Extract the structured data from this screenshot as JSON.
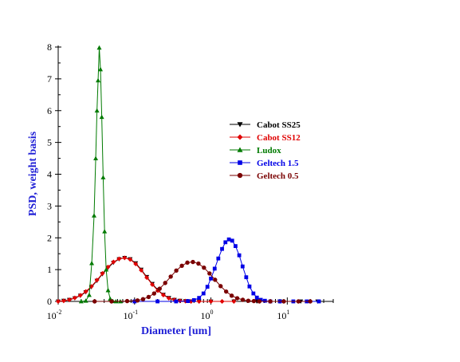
{
  "chart_data": {
    "type": "line",
    "xlabel": "Diameter [um]",
    "ylabel": "PSD, weight basis",
    "x_scale": "log",
    "xlim": [
      0.01,
      40
    ],
    "ylim": [
      0,
      8
    ],
    "y_ticks": [
      0,
      1,
      2,
      3,
      4,
      5,
      6,
      7,
      8
    ],
    "x_ticks": [
      {
        "value": 0.01,
        "base": "10",
        "exp": "-2"
      },
      {
        "value": 0.1,
        "base": "10",
        "exp": "-1"
      },
      {
        "value": 1,
        "base": "10",
        "exp": "0"
      },
      {
        "value": 10,
        "base": "10",
        "exp": "1"
      }
    ],
    "legend_position": "right-center",
    "grid": false,
    "series": [
      {
        "name": "Cabot SS25",
        "color": "#000000",
        "marker": "triangle-down",
        "points": [
          [
            0.01,
            0.0
          ],
          [
            0.0118,
            0.02
          ],
          [
            0.014,
            0.05
          ],
          [
            0.0165,
            0.1
          ],
          [
            0.0195,
            0.18
          ],
          [
            0.023,
            0.29
          ],
          [
            0.0272,
            0.45
          ],
          [
            0.0322,
            0.65
          ],
          [
            0.038,
            0.86
          ],
          [
            0.0449,
            1.06
          ],
          [
            0.053,
            1.22
          ],
          [
            0.0627,
            1.33
          ],
          [
            0.0741,
            1.37
          ],
          [
            0.0876,
            1.33
          ],
          [
            0.1035,
            1.2
          ],
          [
            0.1222,
            1.0
          ],
          [
            0.1445,
            0.77
          ],
          [
            0.1707,
            0.55
          ],
          [
            0.2017,
            0.36
          ],
          [
            0.2383,
            0.21
          ],
          [
            0.2817,
            0.11
          ],
          [
            0.3328,
            0.05
          ],
          [
            0.3933,
            0.02
          ],
          [
            0.4647,
            0.01
          ],
          [
            0.5492,
            0.0
          ],
          [
            0.7,
            0.0
          ],
          [
            1.0,
            0.0
          ],
          [
            2.0,
            0.0
          ],
          [
            4.0,
            0.0
          ],
          [
            8.0,
            0.0
          ],
          [
            15.0,
            0.0
          ],
          [
            25.0,
            0.0
          ]
        ]
      },
      {
        "name": "Cabot SS12",
        "color": "#e00000",
        "marker": "diamond",
        "points": [
          [
            0.01,
            0.0
          ],
          [
            0.0118,
            0.02
          ],
          [
            0.014,
            0.05
          ],
          [
            0.0165,
            0.11
          ],
          [
            0.0195,
            0.19
          ],
          [
            0.023,
            0.31
          ],
          [
            0.0272,
            0.47
          ],
          [
            0.0322,
            0.67
          ],
          [
            0.038,
            0.88
          ],
          [
            0.0449,
            1.08
          ],
          [
            0.053,
            1.24
          ],
          [
            0.0627,
            1.34
          ],
          [
            0.0741,
            1.37
          ],
          [
            0.0876,
            1.32
          ],
          [
            0.1035,
            1.18
          ],
          [
            0.1222,
            0.98
          ],
          [
            0.1445,
            0.75
          ],
          [
            0.1707,
            0.53
          ],
          [
            0.2017,
            0.34
          ],
          [
            0.2383,
            0.2
          ],
          [
            0.2817,
            0.1
          ],
          [
            0.3328,
            0.05
          ],
          [
            0.3933,
            0.02
          ],
          [
            0.4647,
            0.01
          ],
          [
            0.5492,
            0.0
          ],
          [
            0.7,
            0.0
          ],
          [
            1.0,
            0.0
          ],
          [
            1.4,
            0.0
          ],
          [
            2.0,
            0.0
          ]
        ]
      },
      {
        "name": "Ludox",
        "color": "#007a00",
        "marker": "triangle-up",
        "points": [
          [
            0.02,
            0.0
          ],
          [
            0.023,
            0.02
          ],
          [
            0.0255,
            0.2
          ],
          [
            0.0275,
            1.2
          ],
          [
            0.0295,
            2.7
          ],
          [
            0.031,
            4.5
          ],
          [
            0.0322,
            6.0
          ],
          [
            0.0333,
            6.95
          ],
          [
            0.0345,
            7.98
          ],
          [
            0.0358,
            7.3
          ],
          [
            0.0372,
            5.8
          ],
          [
            0.0388,
            3.9
          ],
          [
            0.0405,
            2.2
          ],
          [
            0.0425,
            1.0
          ],
          [
            0.045,
            0.35
          ],
          [
            0.048,
            0.08
          ],
          [
            0.052,
            0.01
          ],
          [
            0.057,
            0.0
          ],
          [
            0.065,
            0.0
          ]
        ]
      },
      {
        "name": "Geltech 1.5",
        "color": "#0000e6",
        "marker": "square",
        "points": [
          [
            0.1,
            0.0
          ],
          [
            0.2,
            0.0
          ],
          [
            0.35,
            0.0
          ],
          [
            0.5,
            0.01
          ],
          [
            0.6,
            0.04
          ],
          [
            0.7,
            0.11
          ],
          [
            0.8,
            0.25
          ],
          [
            0.9,
            0.46
          ],
          [
            1.0,
            0.72
          ],
          [
            1.12,
            1.03
          ],
          [
            1.25,
            1.35
          ],
          [
            1.4,
            1.65
          ],
          [
            1.55,
            1.86
          ],
          [
            1.72,
            1.95
          ],
          [
            1.9,
            1.91
          ],
          [
            2.1,
            1.74
          ],
          [
            2.35,
            1.45
          ],
          [
            2.6,
            1.1
          ],
          [
            2.9,
            0.76
          ],
          [
            3.2,
            0.47
          ],
          [
            3.6,
            0.25
          ],
          [
            4.0,
            0.12
          ],
          [
            4.5,
            0.05
          ],
          [
            5.1,
            0.02
          ],
          [
            6.0,
            0.0
          ],
          [
            8.0,
            0.0
          ],
          [
            12.0,
            0.0
          ],
          [
            18.0,
            0.0
          ],
          [
            26.0,
            0.0
          ]
        ]
      },
      {
        "name": "Geltech 0.5",
        "color": "#7a0000",
        "marker": "circle",
        "points": [
          [
            0.03,
            0.0
          ],
          [
            0.05,
            0.0
          ],
          [
            0.08,
            0.01
          ],
          [
            0.1093,
            0.03
          ],
          [
            0.1292,
            0.07
          ],
          [
            0.1527,
            0.14
          ],
          [
            0.1804,
            0.25
          ],
          [
            0.2132,
            0.4
          ],
          [
            0.252,
            0.58
          ],
          [
            0.2978,
            0.78
          ],
          [
            0.352,
            0.97
          ],
          [
            0.416,
            1.12
          ],
          [
            0.4916,
            1.22
          ],
          [
            0.581,
            1.24
          ],
          [
            0.6866,
            1.19
          ],
          [
            0.8115,
            1.06
          ],
          [
            0.959,
            0.88
          ],
          [
            1.1334,
            0.68
          ],
          [
            1.3395,
            0.48
          ],
          [
            1.5831,
            0.31
          ],
          [
            1.8709,
            0.18
          ],
          [
            2.2111,
            0.1
          ],
          [
            2.6132,
            0.05
          ],
          [
            3.0883,
            0.02
          ],
          [
            3.6498,
            0.01
          ],
          [
            4.3135,
            0.0
          ],
          [
            6.0,
            0.0
          ],
          [
            9.0,
            0.0
          ],
          [
            14.0,
            0.0
          ],
          [
            20.0,
            0.0
          ]
        ]
      }
    ]
  }
}
